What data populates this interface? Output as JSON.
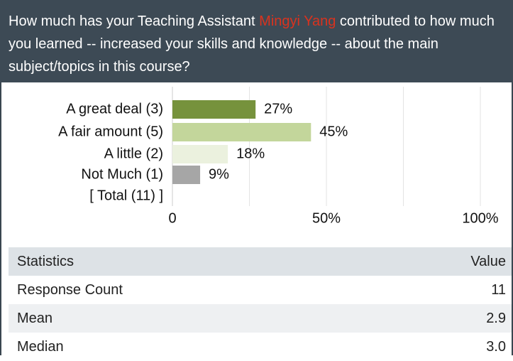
{
  "header": {
    "title_before": "How much has your Teaching Assistant ",
    "name": "Mingyi Yang",
    "title_after": " contributed to how much you learned -- increased your skills and knowledge -- about the main subject/topics in this course?"
  },
  "chart_data": {
    "type": "bar",
    "orientation": "horizontal",
    "categories": [
      "A great deal (3)",
      "A fair amount (5)",
      "A little (2)",
      "Not Much (1)",
      "[ Total (11) ]"
    ],
    "values": [
      27,
      45,
      18,
      9,
      null
    ],
    "value_labels": [
      "27%",
      "45%",
      "18%",
      "9%",
      null
    ],
    "colors": [
      "#76923c",
      "#c3d69b",
      "#ebf1de",
      "#a6a6a6",
      null
    ],
    "xlim": [
      0,
      100
    ],
    "xticks": [
      0,
      {
        "value": 50,
        "label": "50%"
      },
      {
        "value": 100,
        "label": "100%"
      }
    ],
    "grid": true
  },
  "table": {
    "columns": [
      "Statistics",
      "Value"
    ],
    "rows": [
      [
        "Response Count",
        "11"
      ],
      [
        "Mean",
        "2.9"
      ],
      [
        "Median",
        "3.0"
      ]
    ]
  }
}
